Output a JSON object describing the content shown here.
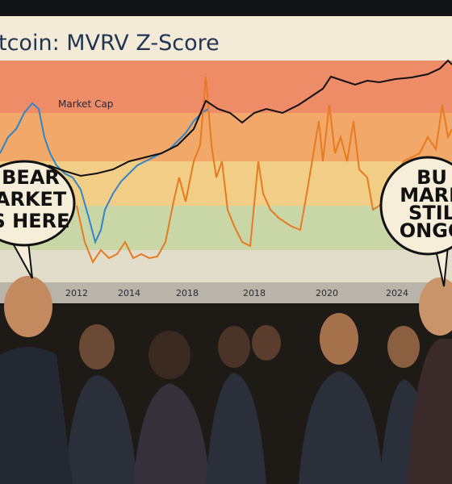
{
  "screen": {
    "title": "tcoin: MVRV Z-Score",
    "series_label": "Market Cap",
    "x_labels": [
      "2012",
      "2014",
      "2018",
      "2018",
      "2020",
      "2024"
    ]
  },
  "bubbles": [
    {
      "lines": [
        "BEAR",
        "ARKET",
        "S HERE"
      ]
    },
    {
      "lines": [
        "BU",
        "MARK",
        "STIL",
        "ONGO"
      ]
    }
  ]
}
